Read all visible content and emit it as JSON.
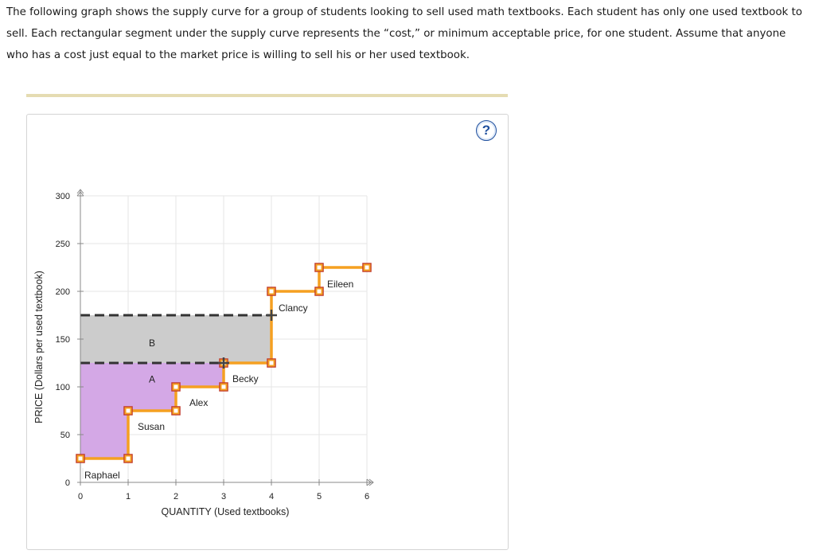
{
  "intro_text": "The following graph shows the supply curve for a group of students looking to sell used math textbooks. Each student has only one used textbook to sell. Each rectangular segment under the supply curve represents the “cost,” or minimum acceptable price, for one student. Assume that anyone who has a cost just equal to the market price is willing to sell his or her used textbook.",
  "help_label": "?",
  "help_icon": "question-mark-icon",
  "colors": {
    "supply": "#f5a021",
    "area_a": "#d4a8e6",
    "area_b": "#cccccc",
    "dashed": "#333333",
    "handle": "#c0392b",
    "grid": "#e6e6e6",
    "axis": "#888888"
  },
  "chart_data": {
    "type": "area",
    "xlabel": "QUANTITY (Used textbooks)",
    "ylabel": "PRICE (Dollars per used textbook)",
    "xlim": [
      0,
      6
    ],
    "ylim": [
      0,
      300
    ],
    "xticks": [
      0,
      1,
      2,
      3,
      4,
      5,
      6
    ],
    "yticks": [
      0,
      50,
      100,
      150,
      200,
      250,
      300
    ],
    "supply_points": [
      [
        0,
        25
      ],
      [
        1,
        25
      ],
      [
        1,
        75
      ],
      [
        2,
        75
      ],
      [
        2,
        100
      ],
      [
        3,
        100
      ],
      [
        3,
        125
      ],
      [
        4,
        125
      ],
      [
        4,
        200
      ],
      [
        5,
        200
      ],
      [
        5,
        225
      ],
      [
        6,
        225
      ]
    ],
    "students": [
      {
        "name": "Raphael",
        "x": 0.5,
        "cost": 25
      },
      {
        "name": "Susan",
        "x": 1.5,
        "cost": 75
      },
      {
        "name": "Alex",
        "x": 2.5,
        "cost": 100
      },
      {
        "name": "Becky",
        "x": 3.5,
        "cost": 125
      },
      {
        "name": "Clancy",
        "x": 4.5,
        "cost": 200
      },
      {
        "name": "Eileen",
        "x": 5.5,
        "cost": 225
      }
    ],
    "price_levels": [
      125,
      175
    ],
    "cross_handles": [
      [
        3,
        125
      ],
      [
        4,
        175
      ]
    ],
    "regions": [
      {
        "label": "A",
        "fill": "#d4a8e6",
        "lower_step": true,
        "y_top": 125,
        "x_end": 3
      },
      {
        "label": "B",
        "fill": "#cccccc",
        "y_bottom": 125,
        "y_top": 175,
        "x_end": 4
      }
    ]
  }
}
